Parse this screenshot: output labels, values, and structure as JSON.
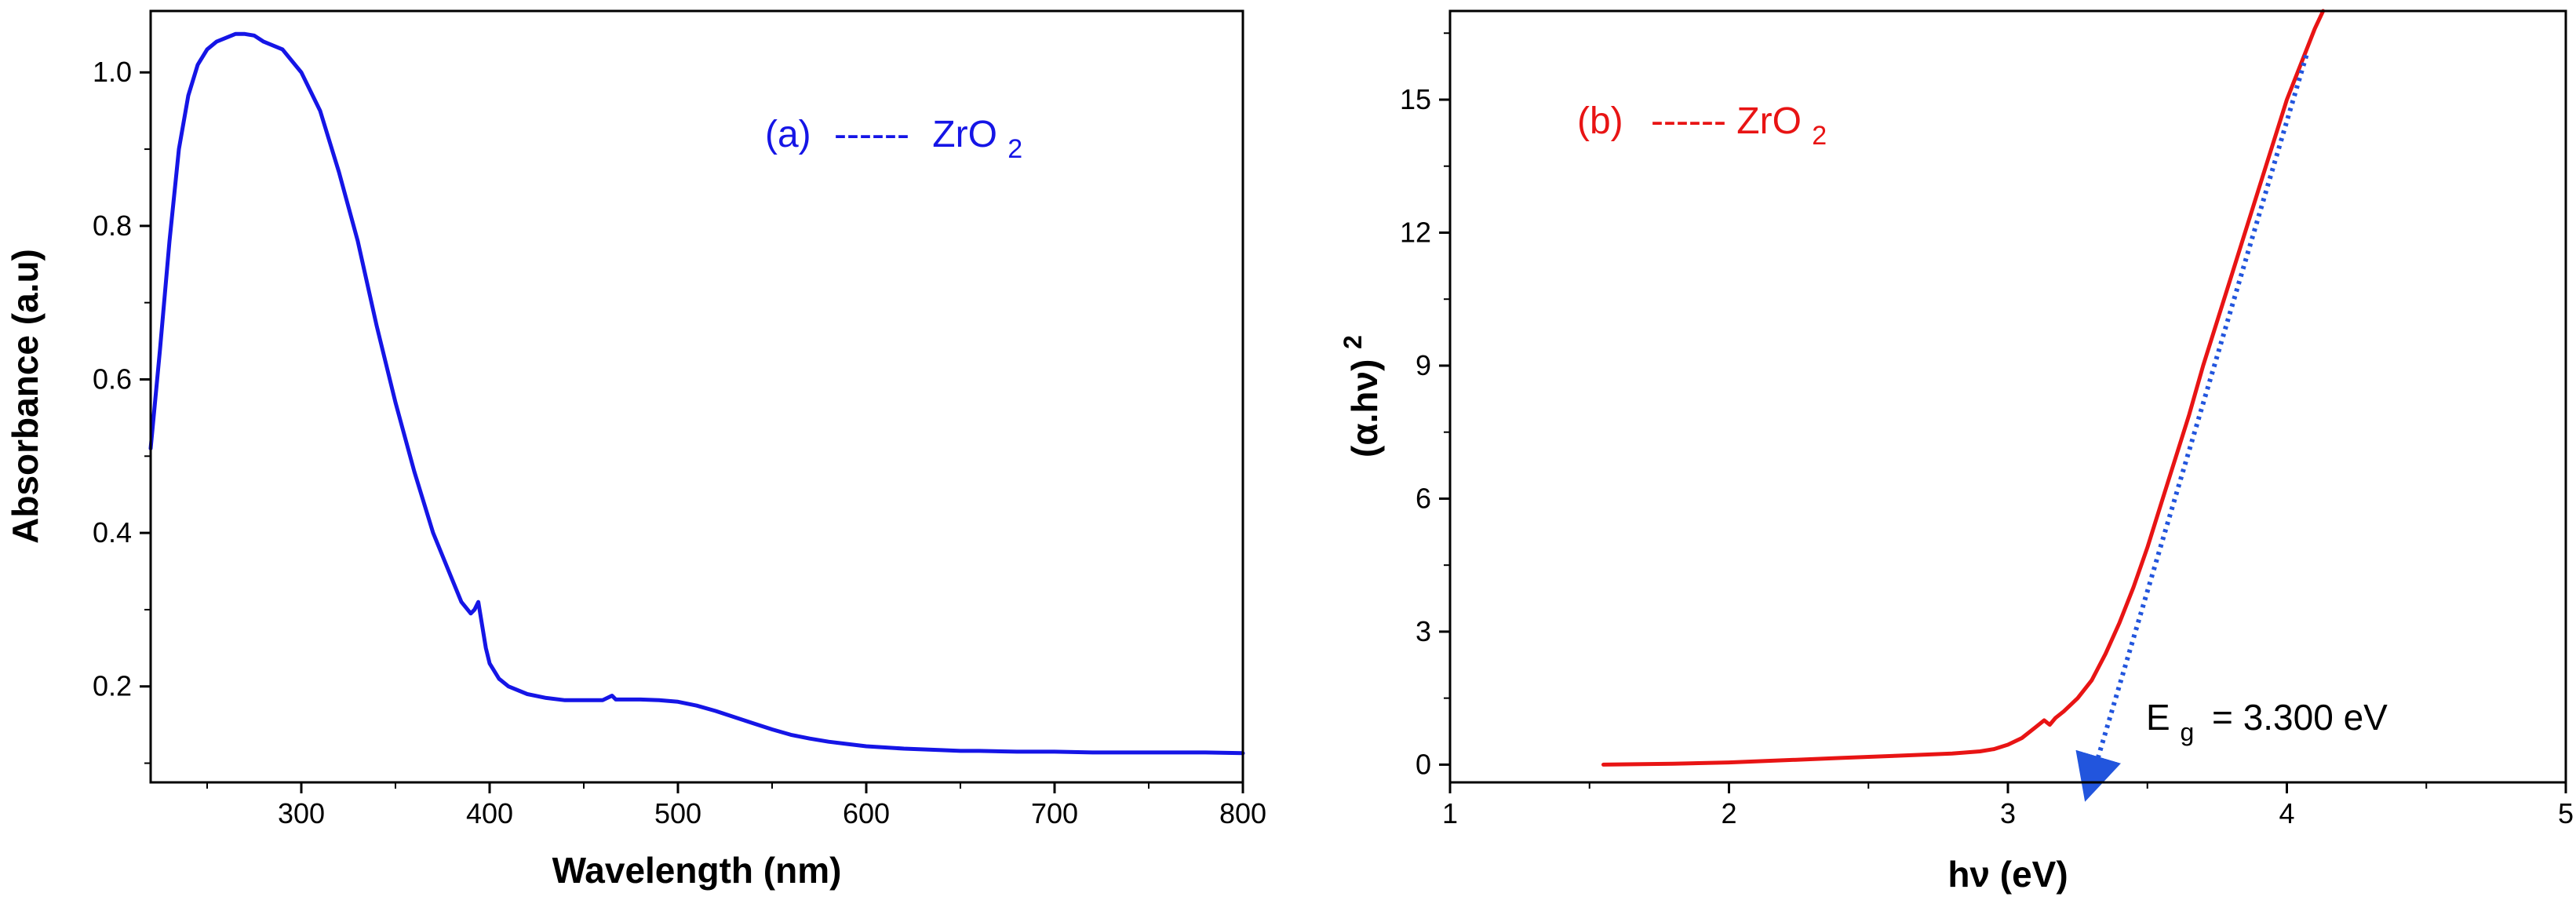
{
  "chart_data": [
    {
      "panel": "a",
      "type": "line",
      "title": "",
      "xlabel": "Wavelength (nm)",
      "ylabel": "Absorbance (a.u)",
      "xlim": [
        220,
        800
      ],
      "ylim": [
        0.075,
        1.08
      ],
      "xticks": [
        300,
        400,
        500,
        600,
        700,
        800
      ],
      "yticks": [
        0.2,
        0.4,
        0.6,
        0.8,
        1.0
      ],
      "ytick_labels": [
        "0.2",
        "0.4",
        "0.6",
        "0.8",
        "1.0"
      ],
      "legend": {
        "label_prefix": "(a)",
        "dashes": "------",
        "material": "ZrO",
        "subscript": "2",
        "color": "#1515e6"
      },
      "series": [
        {
          "name": "ZrO2",
          "color": "#1515e6",
          "x": [
            220,
            225,
            230,
            235,
            240,
            245,
            250,
            255,
            260,
            265,
            270,
            275,
            280,
            290,
            300,
            310,
            320,
            330,
            340,
            350,
            360,
            370,
            380,
            385,
            390,
            392,
            394,
            396,
            398,
            400,
            405,
            410,
            420,
            430,
            440,
            450,
            460,
            465,
            467,
            470,
            480,
            490,
            500,
            510,
            520,
            530,
            540,
            550,
            560,
            570,
            580,
            590,
            600,
            620,
            640,
            650,
            660,
            680,
            700,
            720,
            740,
            760,
            780,
            800
          ],
          "y": [
            0.51,
            0.64,
            0.78,
            0.9,
            0.97,
            1.01,
            1.03,
            1.04,
            1.045,
            1.05,
            1.05,
            1.048,
            1.04,
            1.03,
            1.0,
            0.95,
            0.87,
            0.78,
            0.67,
            0.57,
            0.48,
            0.4,
            0.34,
            0.31,
            0.295,
            0.3,
            0.31,
            0.28,
            0.25,
            0.23,
            0.21,
            0.2,
            0.19,
            0.185,
            0.182,
            0.182,
            0.182,
            0.188,
            0.183,
            0.183,
            0.183,
            0.182,
            0.18,
            0.175,
            0.168,
            0.16,
            0.152,
            0.144,
            0.137,
            0.132,
            0.128,
            0.125,
            0.122,
            0.119,
            0.117,
            0.116,
            0.116,
            0.115,
            0.115,
            0.114,
            0.114,
            0.114,
            0.114,
            0.113
          ]
        }
      ]
    },
    {
      "panel": "b",
      "type": "line",
      "title": "",
      "xlabel": "hν (eV)",
      "ylabel": "(α.hν)",
      "ylabel_superscript": "2",
      "xlim": [
        1,
        5
      ],
      "ylim": [
        -0.4,
        17.0
      ],
      "xticks": [
        1,
        2,
        3,
        4,
        5
      ],
      "yticks": [
        0,
        3,
        6,
        9,
        12,
        15
      ],
      "legend": {
        "label_prefix": "(b)",
        "dashes": "------",
        "material": "ZrO",
        "subscript": "2",
        "color": "#e81414"
      },
      "annotation": {
        "label": "E",
        "subscript": "g",
        "value_text": "= 3.300 eV",
        "bandgap_ev": 3.3,
        "arrow_color": "#2255dd"
      },
      "series": [
        {
          "name": "(αhν)^2",
          "color": "#e81414",
          "x": [
            1.55,
            1.8,
            2.0,
            2.2,
            2.4,
            2.6,
            2.8,
            2.9,
            2.95,
            3.0,
            3.05,
            3.1,
            3.13,
            3.15,
            3.17,
            3.2,
            3.25,
            3.3,
            3.35,
            3.4,
            3.45,
            3.5,
            3.55,
            3.6,
            3.65,
            3.7,
            3.8,
            3.9,
            4.0,
            4.1,
            4.13
          ],
          "y": [
            0.0,
            0.02,
            0.05,
            0.1,
            0.15,
            0.2,
            0.25,
            0.3,
            0.35,
            0.45,
            0.6,
            0.85,
            1.0,
            0.9,
            1.05,
            1.2,
            1.5,
            1.9,
            2.5,
            3.2,
            4.0,
            4.9,
            5.9,
            6.9,
            7.9,
            9.0,
            11.0,
            13.0,
            15.0,
            16.6,
            17.0
          ]
        },
        {
          "name": "linear fit",
          "color": "#2255dd",
          "style": "dotted",
          "x": [
            3.3,
            4.07
          ],
          "y": [
            0.0,
            16.0
          ]
        }
      ]
    }
  ]
}
